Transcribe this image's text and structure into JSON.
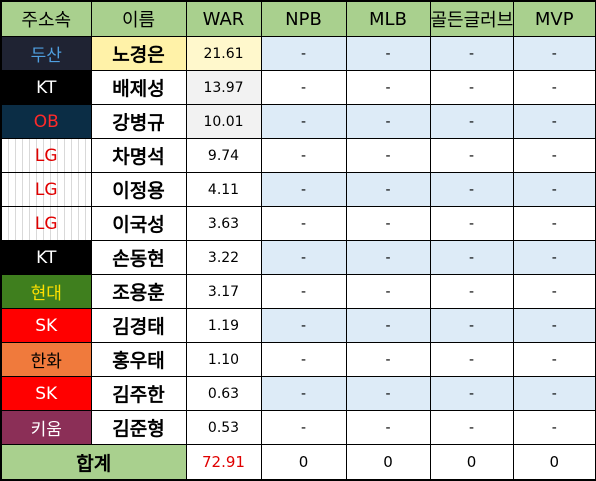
{
  "headers": [
    "주소속",
    "이름",
    "WAR",
    "NPB",
    "MLB",
    "골든글러브",
    "MVP"
  ],
  "rows": [
    {
      "team": "두산",
      "name": "노경은",
      "war": "21.61",
      "npb": "-",
      "mlb": "-",
      "gg": "-",
      "mvp": "-",
      "team_bg": "#1f2333",
      "team_fg": "#4f9fe0",
      "name_bg": "#fff2a8",
      "war_bg": "#fff8cc",
      "dash_bg": "#ddebf7"
    },
    {
      "team": "KT",
      "name": "배제성",
      "war": "13.97",
      "npb": "-",
      "mlb": "-",
      "gg": "-",
      "mvp": "-",
      "team_bg": "#000000",
      "team_fg": "#ffffff",
      "name_bg": "#ffffff",
      "war_bg": "#f2f2f2",
      "dash_bg": "#ffffff"
    },
    {
      "team": "OB",
      "name": "강병규",
      "war": "10.01",
      "npb": "-",
      "mlb": "-",
      "gg": "-",
      "mvp": "-",
      "team_bg": "#0b2d45",
      "team_fg": "#ff2a2a",
      "name_bg": "#ffffff",
      "war_bg": "#f2f2f2",
      "dash_bg": "#ddebf7"
    },
    {
      "team": "LG",
      "name": "차명석",
      "war": "9.74",
      "npb": "-",
      "mlb": "-",
      "gg": "-",
      "mvp": "-",
      "team_bg": "lg",
      "team_fg": "#e00000",
      "name_bg": "#ffffff",
      "war_bg": "#ffffff",
      "dash_bg": "#ffffff"
    },
    {
      "team": "LG",
      "name": "이정용",
      "war": "4.11",
      "npb": "-",
      "mlb": "-",
      "gg": "-",
      "mvp": "-",
      "team_bg": "lg",
      "team_fg": "#e00000",
      "name_bg": "#ffffff",
      "war_bg": "#ffffff",
      "dash_bg": "#ddebf7"
    },
    {
      "team": "LG",
      "name": "이국성",
      "war": "3.63",
      "npb": "-",
      "mlb": "-",
      "gg": "-",
      "mvp": "-",
      "team_bg": "lg",
      "team_fg": "#e00000",
      "name_bg": "#ffffff",
      "war_bg": "#ffffff",
      "dash_bg": "#ffffff"
    },
    {
      "team": "KT",
      "name": "손동현",
      "war": "3.22",
      "npb": "-",
      "mlb": "-",
      "gg": "-",
      "mvp": "-",
      "team_bg": "#000000",
      "team_fg": "#ffffff",
      "name_bg": "#ffffff",
      "war_bg": "#ffffff",
      "dash_bg": "#ddebf7"
    },
    {
      "team": "현대",
      "name": "조용훈",
      "war": "3.17",
      "npb": "-",
      "mlb": "-",
      "gg": "-",
      "mvp": "-",
      "team_bg": "#3f7f1e",
      "team_fg": "#ffe000",
      "name_bg": "#ffffff",
      "war_bg": "#ffffff",
      "dash_bg": "#ffffff"
    },
    {
      "team": "SK",
      "name": "김경태",
      "war": "1.19",
      "npb": "-",
      "mlb": "-",
      "gg": "-",
      "mvp": "-",
      "team_bg": "#ff0000",
      "team_fg": "#ffffff",
      "name_bg": "#ffffff",
      "war_bg": "#ffffff",
      "dash_bg": "#ddebf7"
    },
    {
      "team": "한화",
      "name": "홍우태",
      "war": "1.10",
      "npb": "-",
      "mlb": "-",
      "gg": "-",
      "mvp": "-",
      "team_bg": "#f07a3c",
      "team_fg": "#000000",
      "name_bg": "#ffffff",
      "war_bg": "#ffffff",
      "dash_bg": "#ffffff"
    },
    {
      "team": "SK",
      "name": "김주한",
      "war": "0.63",
      "npb": "-",
      "mlb": "-",
      "gg": "-",
      "mvp": "-",
      "team_bg": "#ff0000",
      "team_fg": "#ffffff",
      "name_bg": "#ffffff",
      "war_bg": "#ffffff",
      "dash_bg": "#ddebf7"
    },
    {
      "team": "키움",
      "name": "김준형",
      "war": "0.53",
      "npb": "-",
      "mlb": "-",
      "gg": "-",
      "mvp": "-",
      "team_bg": "#8b2f57",
      "team_fg": "#ffffff",
      "name_bg": "#ffffff",
      "war_bg": "#ffffff",
      "dash_bg": "#ffffff"
    }
  ],
  "total": {
    "label": "합계",
    "war": "72.91",
    "npb": "0",
    "mlb": "0",
    "gg": "0",
    "mvp": "0"
  }
}
